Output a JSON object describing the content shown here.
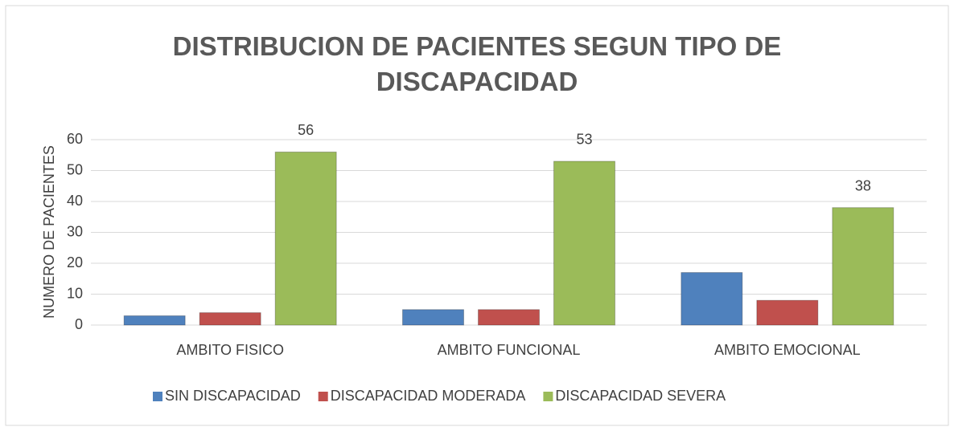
{
  "chart_data": {
    "type": "bar",
    "title": "DISTRIBUCION DE PACIENTES SEGUN TIPO DE DISCAPACIDAD",
    "y_label": "NUMERO DE PACIENTES",
    "categories": [
      "AMBITO FISICO",
      "AMBITO FUNCIONAL",
      "AMBITO EMOCIONAL"
    ],
    "series": [
      {
        "name": "SIN DISCAPACIDAD",
        "color": "#4f81bd",
        "values": [
          3,
          5,
          17
        ]
      },
      {
        "name": "DISCAPACIDAD MODERADA",
        "color": "#c0504d",
        "values": [
          4,
          5,
          8
        ]
      },
      {
        "name": "DISCAPACIDAD SEVERA",
        "color": "#9bbb59",
        "values": [
          56,
          53,
          38
        ],
        "data_labels": true
      }
    ],
    "ylim": [
      0,
      60
    ],
    "yticks": [
      0,
      10,
      20,
      30,
      40,
      50,
      60
    ],
    "grid": true,
    "legend": "bottom"
  }
}
